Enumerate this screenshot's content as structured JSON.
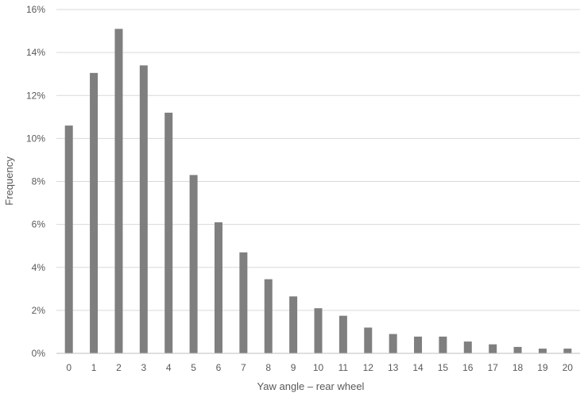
{
  "chart_data": {
    "type": "bar",
    "xlabel": "Yaw angle – rear wheel",
    "ylabel": "Frequency",
    "categories": [
      "0",
      "1",
      "2",
      "3",
      "4",
      "5",
      "6",
      "7",
      "8",
      "9",
      "10",
      "11",
      "12",
      "13",
      "14",
      "15",
      "16",
      "17",
      "18",
      "19",
      "20"
    ],
    "values": [
      10.6,
      13.05,
      15.1,
      13.4,
      11.2,
      8.3,
      6.1,
      4.7,
      3.45,
      2.65,
      2.1,
      1.75,
      1.2,
      0.9,
      0.78,
      0.78,
      0.55,
      0.42,
      0.3,
      0.22,
      0.22
    ],
    "ylim": [
      0,
      16
    ],
    "yticks": [
      0,
      2,
      4,
      6,
      8,
      10,
      12,
      14,
      16
    ],
    "ytick_labels": [
      "0%",
      "2%",
      "4%",
      "6%",
      "8%",
      "10%",
      "12%",
      "14%",
      "16%"
    ],
    "grid": true,
    "legend": "none",
    "colors": {
      "bar": "#7f7f7f",
      "grid": "#d9d9d9",
      "axis": "#bfbfbf",
      "text": "#595959"
    }
  }
}
